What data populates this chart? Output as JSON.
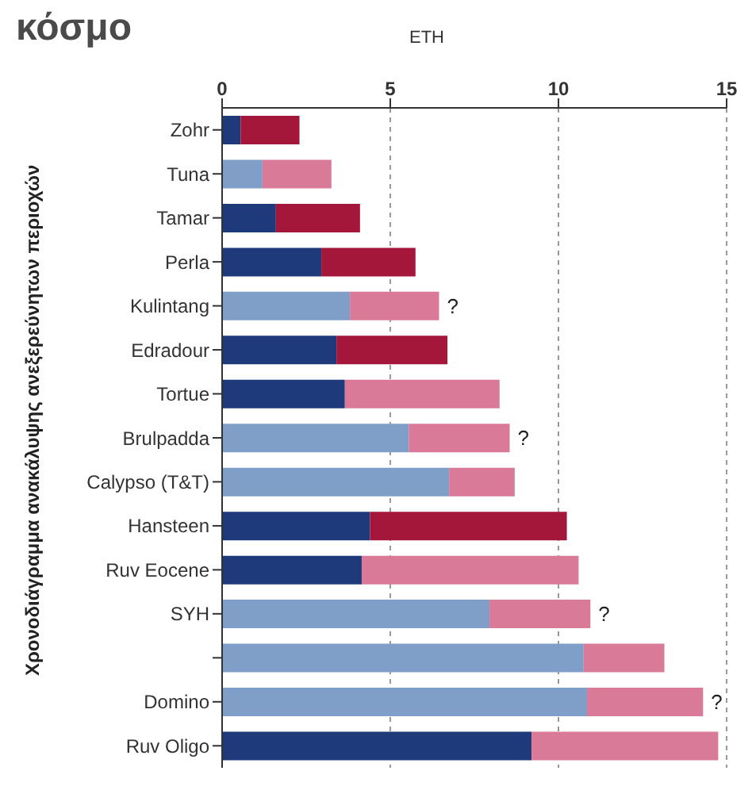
{
  "chart_data": {
    "type": "bar",
    "orientation": "horizontal",
    "stacked": true,
    "title": "κόσμο",
    "xlabel": "ETH",
    "ylabel": "Χρονοδιάγραμμα ανακάλυψης ανεξερεύνητων περιοχών",
    "categories": [
      "Zohr",
      "Tuna",
      "Tamar",
      "Perla",
      "Kulintang",
      "Edradour",
      "Tortue",
      "Brulpadda",
      "Calypso (T&T)",
      "Hansteen",
      "Ruv Eocene",
      "SYH",
      null,
      "Domino",
      "Ruv Oligo"
    ],
    "series": [
      {
        "values": [
          0.55,
          1.2,
          1.6,
          2.95,
          3.8,
          3.4,
          3.65,
          5.55,
          6.75,
          4.4,
          4.15,
          7.95,
          10.75,
          10.85,
          9.2
        ],
        "colors": [
          "#1f3a7a",
          "#7f9fc8",
          "#1f3a7a",
          "#1f3a7a",
          "#7f9fc8",
          "#1f3a7a",
          "#1f3a7a",
          "#7f9fc8",
          "#7f9fc8",
          "#1f3a7a",
          "#1f3a7a",
          "#7f9fc8",
          "#7f9fc8",
          "#7f9fc8",
          "#1f3a7a"
        ]
      },
      {
        "values": [
          1.75,
          2.05,
          2.5,
          2.8,
          2.65,
          3.3,
          4.6,
          3.0,
          1.95,
          5.85,
          6.45,
          3.0,
          2.4,
          3.45,
          5.55
        ],
        "colors": [
          "#a4173a",
          "#d97a98",
          "#a4173a",
          "#a4173a",
          "#d97a98",
          "#a4173a",
          "#d97a98",
          "#d97a98",
          "#d97a98",
          "#a4173a",
          "#d97a98",
          "#d97a98",
          "#d97a98",
          "#d97a98",
          "#d97a98"
        ]
      }
    ],
    "xlim": [
      0,
      15
    ],
    "xticks": [
      0,
      5,
      10,
      15
    ],
    "grid": "x",
    "legend": false,
    "annotations": [
      {
        "text": "?",
        "x": 6.45,
        "y": "Kulintang"
      },
      {
        "text": "?",
        "x": 8.55,
        "y": "Brulpadda"
      },
      {
        "text": "?",
        "x": 10.95,
        "y": "SYH"
      },
      {
        "text": "?",
        "x": 14.3,
        "y": "Domino"
      }
    ]
  }
}
